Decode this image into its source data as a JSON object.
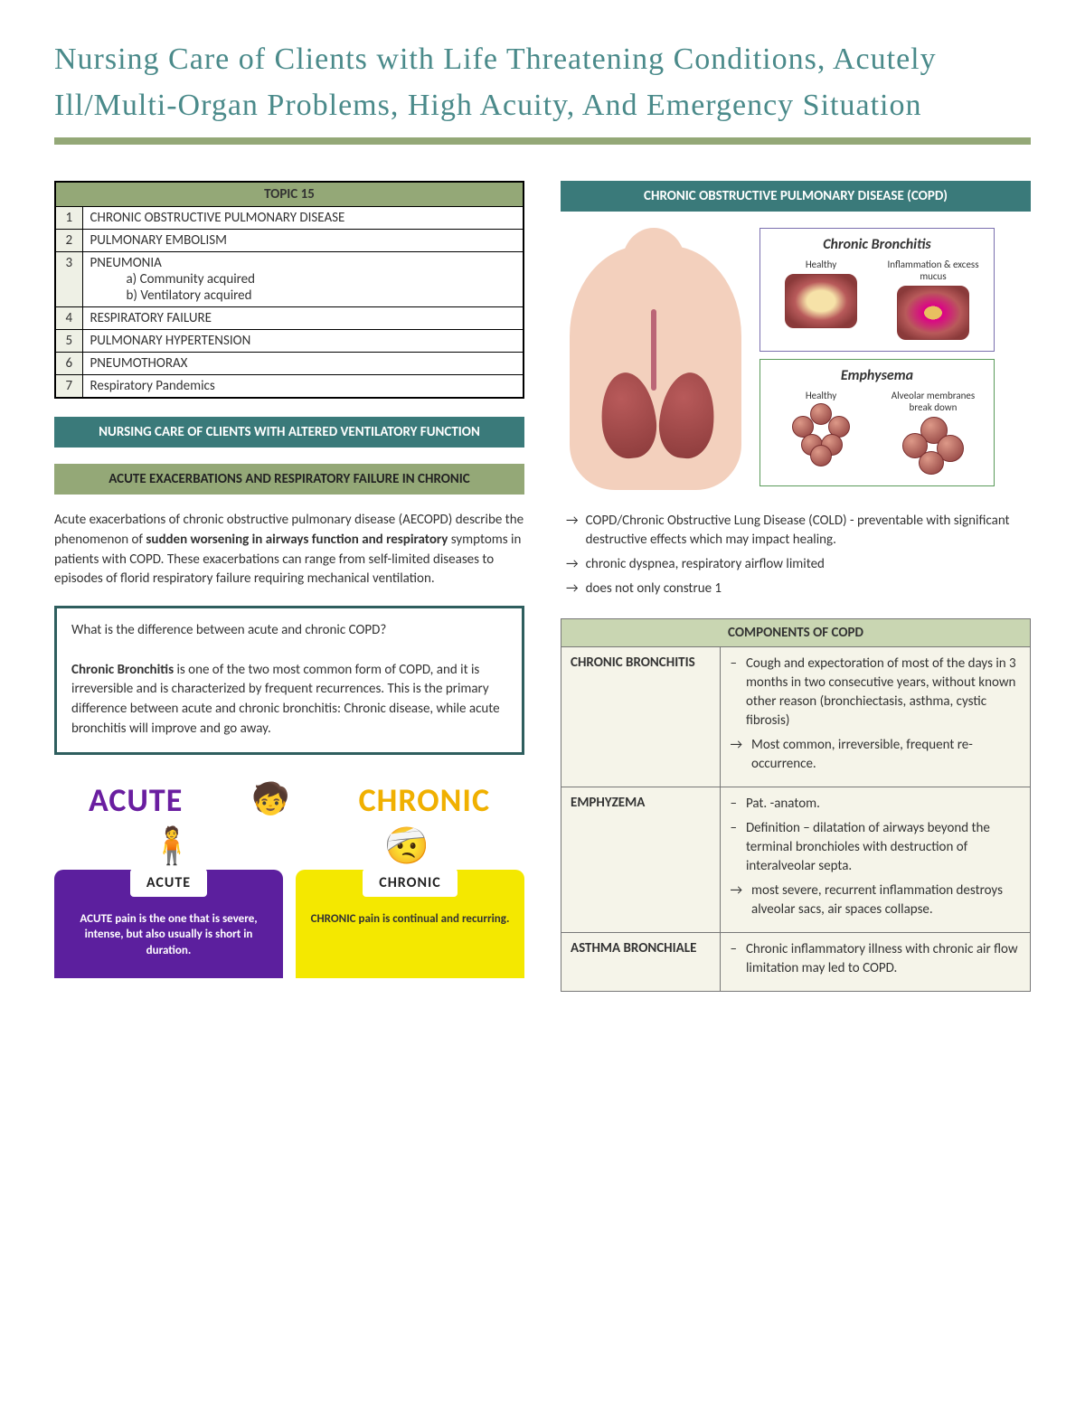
{
  "title": "Nursing Care of Clients with Life Threatening Conditions, Acutely Ill/Multi-Organ Problems, High Acuity, And Emergency Situation",
  "topic": {
    "header": "TOPIC 15",
    "rows": [
      {
        "n": "1",
        "t": "CHRONIC OBSTRUCTIVE PULMONARY DISEASE"
      },
      {
        "n": "2",
        "t": "PULMONARY EMBOLISM"
      },
      {
        "n": "3",
        "t": "PNEUMONIA",
        "subs": [
          "a)   Community acquired",
          "b)   Ventilatory acquired"
        ]
      },
      {
        "n": "4",
        "t": "RESPIRATORY FAILURE"
      },
      {
        "n": "5",
        "t": "PULMONARY HYPERTENSION"
      },
      {
        "n": "6",
        "t": "PNEUMOTHORAX"
      },
      {
        "n": "7",
        "t": "Respiratory Pandemics"
      }
    ]
  },
  "banners": {
    "teal1": "NURSING CARE OF CLIENTS WITH ALTERED VENTILATORY FUNCTION",
    "olive1": "ACUTE EXACERBATIONS AND RESPIRATORY FAILURE IN CHRONIC",
    "teal2": "CHRONIC OBSTRUCTIVE PULMONARY DISEASE (COPD)"
  },
  "para1_a": "Acute exacerbations of chronic obstructive pulmonary disease (AECOPD) describe the phenomenon of ",
  "para1_b": "sudden worsening in airways function and respiratory",
  "para1_c": " symptoms in patients with COPD. These exacerbations can range from self-limited diseases to episodes of florid respiratory failure requiring mechanical ventilation.",
  "box_q": "What is the difference between acute and chronic COPD?",
  "box_term": "Chronic Bronchitis",
  "box_rest": " is one of the two most common form of COPD, and it is irreversible and is characterized by frequent recurrences. This is the primary difference between acute and chronic bronchitis: Chronic disease, while acute bronchitis will improve and go away.",
  "ac": {
    "acute_word": "ACUTE",
    "chronic_word": "CHRONIC",
    "acute_pill": "ACUTE",
    "chronic_pill": "CHRONIC",
    "acute_desc": "ACUTE pain is the one that is severe, intense, but also usually is short in duration.",
    "chronic_desc": "CHRONIC pain is continual and recurring."
  },
  "illus": {
    "cb_title": "Chronic Bronchitis",
    "cb_l": "Healthy",
    "cb_r": "Inflammation & excess mucus",
    "em_title": "Emphysema",
    "em_l": "Healthy",
    "em_r": "Alveolar membranes break down"
  },
  "arrows": [
    "COPD/Chronic Obstructive Lung Disease (COLD) - preventable with significant destructive effects which may impact healing.",
    "chronic dyspnea, respiratory airflow limited",
    "does not only construe 1"
  ],
  "comp": {
    "header": "COMPONENTS OF COPD",
    "rows": [
      {
        "term": "CHRONIC BRONCHITIS",
        "items": [
          {
            "m": "–",
            "t": "Cough and expectoration of most of the days in 3 months in two consecutive years, without known other reason (bronchiectasis, asthma, cystic fibrosis)"
          },
          {
            "m": "→",
            "t": "Most common, irreversible, frequent re-occurrence."
          }
        ]
      },
      {
        "term": "EMPHYZEMA",
        "items": [
          {
            "m": "–",
            "t": "Pat. -anatom."
          },
          {
            "m": "–",
            "t": "Definition – dilatation of airways beyond the terminal bronchioles with destruction of interalveolar septa."
          },
          {
            "m": "→",
            "t": "most severe, recurrent inflammation destroys alveolar sacs, air spaces collapse."
          }
        ]
      },
      {
        "term": "ASTHMA BRONCHIALE",
        "items": [
          {
            "m": "–",
            "t": "Chronic inflammatory illness with chronic air flow limitation may led to COPD."
          }
        ]
      }
    ]
  },
  "colors": {
    "olive": "#94a877",
    "teal": "#3a7a7a"
  }
}
